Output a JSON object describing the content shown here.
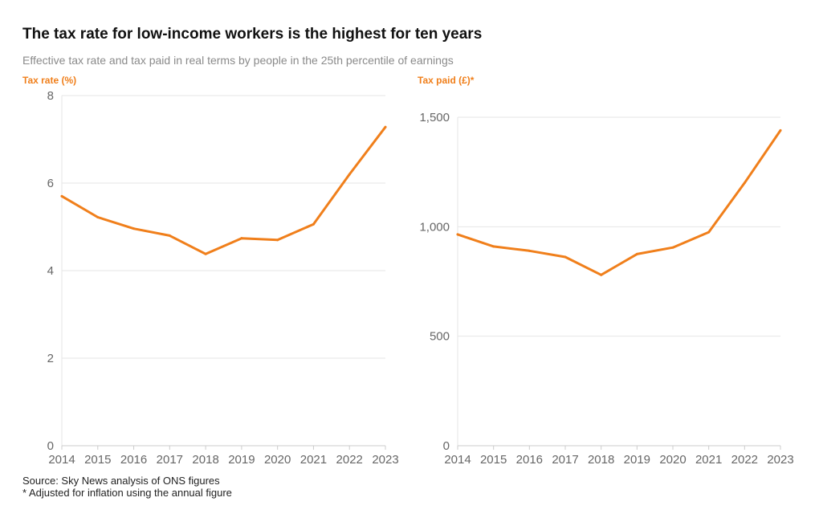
{
  "title": "The tax rate for low-income workers is the highest for ten years",
  "subtitle": "Effective tax rate and tax paid in real terms by people in the 25th percentile of earnings",
  "source": "Source: Sky News analysis of ONS figures",
  "note": "* Adjusted for inflation using the annual figure",
  "colors": {
    "line": "#f07f1b",
    "grid": "#e6e6e6",
    "axis": "#cccccc",
    "tick": "#666666"
  },
  "chart_data": [
    {
      "type": "line",
      "ylabel": "Tax rate (%)",
      "categories": [
        "2014",
        "2015",
        "2016",
        "2017",
        "2018",
        "2019",
        "2020",
        "2021",
        "2022",
        "2023"
      ],
      "values": [
        5.7,
        5.22,
        4.96,
        4.8,
        4.38,
        4.74,
        4.7,
        5.06,
        6.2,
        7.28
      ],
      "ylim": [
        0,
        8
      ],
      "yticks": [
        0,
        2,
        4,
        6,
        8
      ],
      "ytick_labels": [
        "0",
        "2",
        "4",
        "6",
        "8"
      ],
      "grid": true
    },
    {
      "type": "line",
      "ylabel": "Tax paid (£)*",
      "categories": [
        "2014",
        "2015",
        "2016",
        "2017",
        "2018",
        "2019",
        "2020",
        "2021",
        "2022",
        "2023"
      ],
      "values": [
        965,
        910,
        890,
        862,
        780,
        875,
        905,
        975,
        1200,
        1440
      ],
      "ylim": [
        0,
        1500
      ],
      "yticks": [
        0,
        500,
        1000,
        1500
      ],
      "ytick_labels": [
        "0",
        "500",
        "1,000",
        "1,500"
      ],
      "grid": true
    }
  ]
}
